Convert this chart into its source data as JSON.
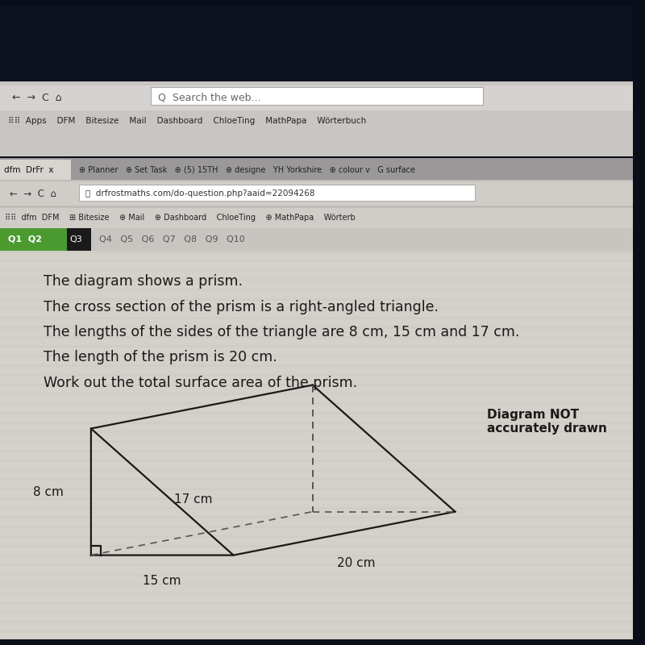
{
  "fig_bg": "#0a0e1a",
  "screen_bg": "#c8c4be",
  "browser1_bg": "#b8b4b0",
  "browser2_bg": "#c0bcb8",
  "toolbar_bg": "#d0ccc8",
  "tab_bar_bg": "#9090a0",
  "addr_bar_bg": "#e8e4e0",
  "content_bg": "#d4d0ca",
  "text_color": "#1a1a1a",
  "lines": [
    "The diagram shows a prism.",
    "The cross section of the prism is a right-angled triangle.",
    "The lengths of the sides of the triangle are 8 cm, 15 cm and 17 cm.",
    "The length of the prism is 20 cm.",
    "Work out the total surface area of the prism."
  ],
  "label_8cm": "8 cm",
  "label_15cm": "15 cm",
  "label_17cm": "17 cm",
  "label_20cm": "20 cm",
  "diagram_not_text": "Diagram NOT\naccurately drawn",
  "prism_color": "#1a1a1a",
  "dashed_color": "#555555"
}
